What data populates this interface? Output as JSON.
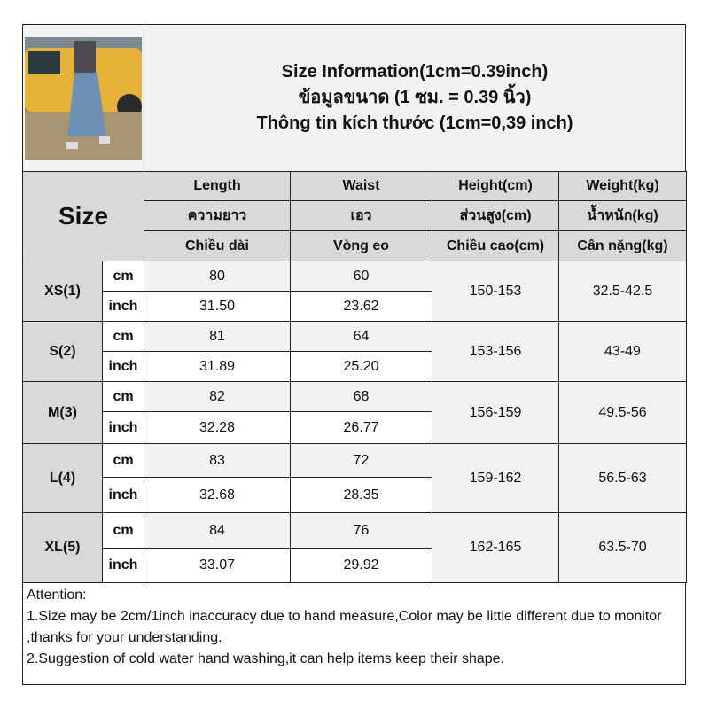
{
  "title": {
    "line1": "Size Information(1cm=0.39inch)",
    "line2": "ข้อมูลขนาด (1 ซม. = 0.39 นิ้ว)",
    "line3": "Thông tin kích thước (1cm=0,39 inch)"
  },
  "size_label": "Size",
  "columns": [
    {
      "en": "Length",
      "th": "ความยาว",
      "vi": "Chiều dài"
    },
    {
      "en": "Waist",
      "th": "เอว",
      "vi": "Vòng eo"
    },
    {
      "en": "Height(cm)",
      "th": "ส่วนสูง(cm)",
      "vi": "Chiều cao(cm)"
    },
    {
      "en": "Weight(kg)",
      "th": "น้ำหนัก(kg)",
      "vi": "Cân nặng(kg)"
    }
  ],
  "unit_cm": "cm",
  "unit_inch": "inch",
  "rows": [
    {
      "size": "XS(1)",
      "length_cm": "80",
      "waist_cm": "60",
      "length_in": "31.50",
      "waist_in": "23.62",
      "height": "150-153",
      "weight": "32.5-42.5"
    },
    {
      "size": "S(2)",
      "length_cm": "81",
      "waist_cm": "64",
      "length_in": "31.89",
      "waist_in": "25.20",
      "height": "153-156",
      "weight": "43-49"
    },
    {
      "size": "M(3)",
      "length_cm": "82",
      "waist_cm": "68",
      "length_in": "32.28",
      "waist_in": "26.77",
      "height": "156-159",
      "weight": "49.5-56"
    },
    {
      "size": "L(4)",
      "length_cm": "83",
      "waist_cm": "72",
      "length_in": "32.68",
      "waist_in": "28.35",
      "height": "159-162",
      "weight": "56.5-63"
    },
    {
      "size": "XL(5)",
      "length_cm": "84",
      "waist_cm": "76",
      "length_in": "33.07",
      "waist_in": "29.92",
      "height": "162-165",
      "weight": "63.5-70"
    }
  ],
  "notes": {
    "heading": "Attention:",
    "line1": "1.Size may be 2cm/1inch inaccuracy due to hand measure,Color may be little different due to monitor ,thanks for your understanding.",
    "line2": "2.Suggestion of cold water hand washing,it can help items keep their shape."
  }
}
